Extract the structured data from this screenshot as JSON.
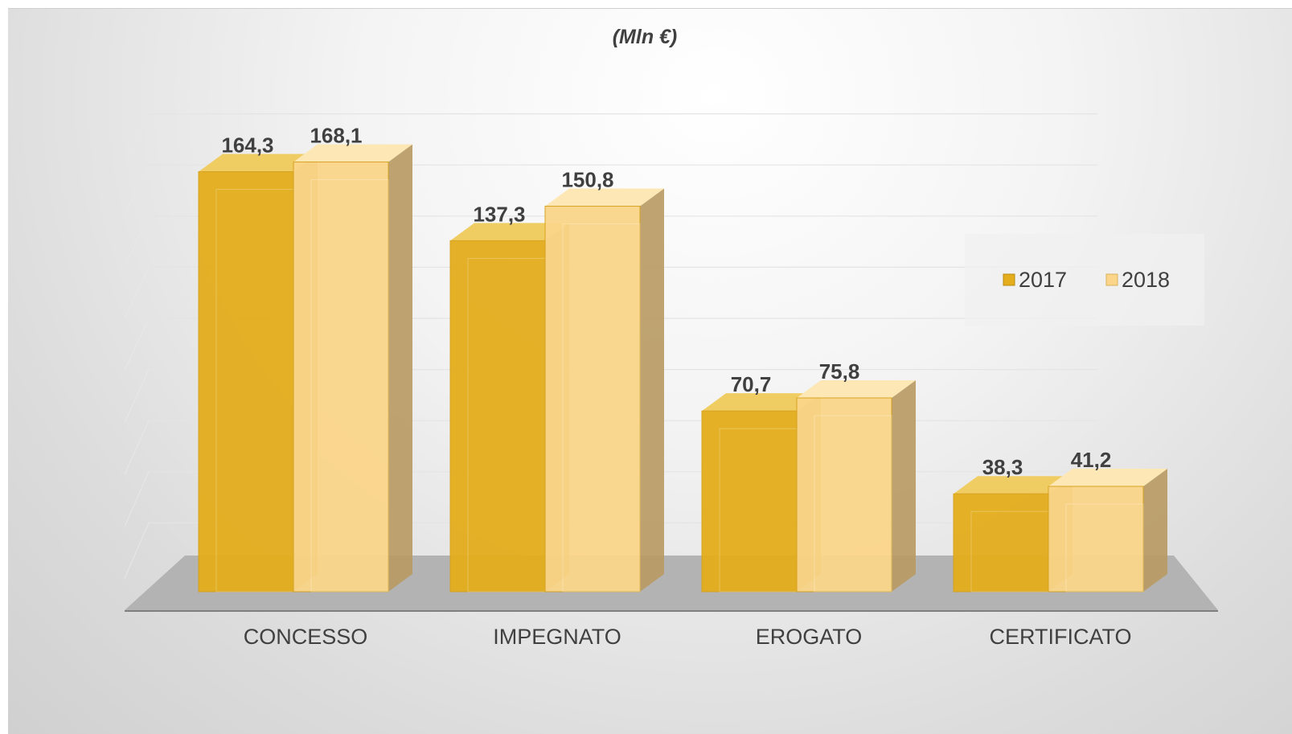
{
  "chart_data": {
    "type": "bar",
    "title": "(Mln €)",
    "categories": [
      "CONCESSO",
      "IMPEGNATO",
      "EROGATO",
      "CERTIFICATO"
    ],
    "series": [
      {
        "name": "2017",
        "values": [
          164.3,
          137.3,
          70.7,
          38.3
        ],
        "labels": [
          "164,3",
          "137,3",
          "70,7",
          "38,3"
        ]
      },
      {
        "name": "2018",
        "values": [
          168.1,
          150.8,
          75.8,
          41.2
        ],
        "labels": [
          "168,1",
          "150,8",
          "75,8",
          "41,2"
        ]
      }
    ],
    "ylim": [
      0,
      180
    ],
    "grid": true,
    "legend_position": "right",
    "style": "3d-clustered-column",
    "colors": {
      "2017": "#e3ad1c",
      "2017_top": "#f0cd63",
      "2017_side": "#a87e10",
      "2018": "#fbd68a",
      "2018_top": "#fde7b4",
      "2018_side": "#b89a62",
      "floor": "#b3b3b3",
      "axis": "#7f7f7f",
      "text": "#404040"
    }
  }
}
